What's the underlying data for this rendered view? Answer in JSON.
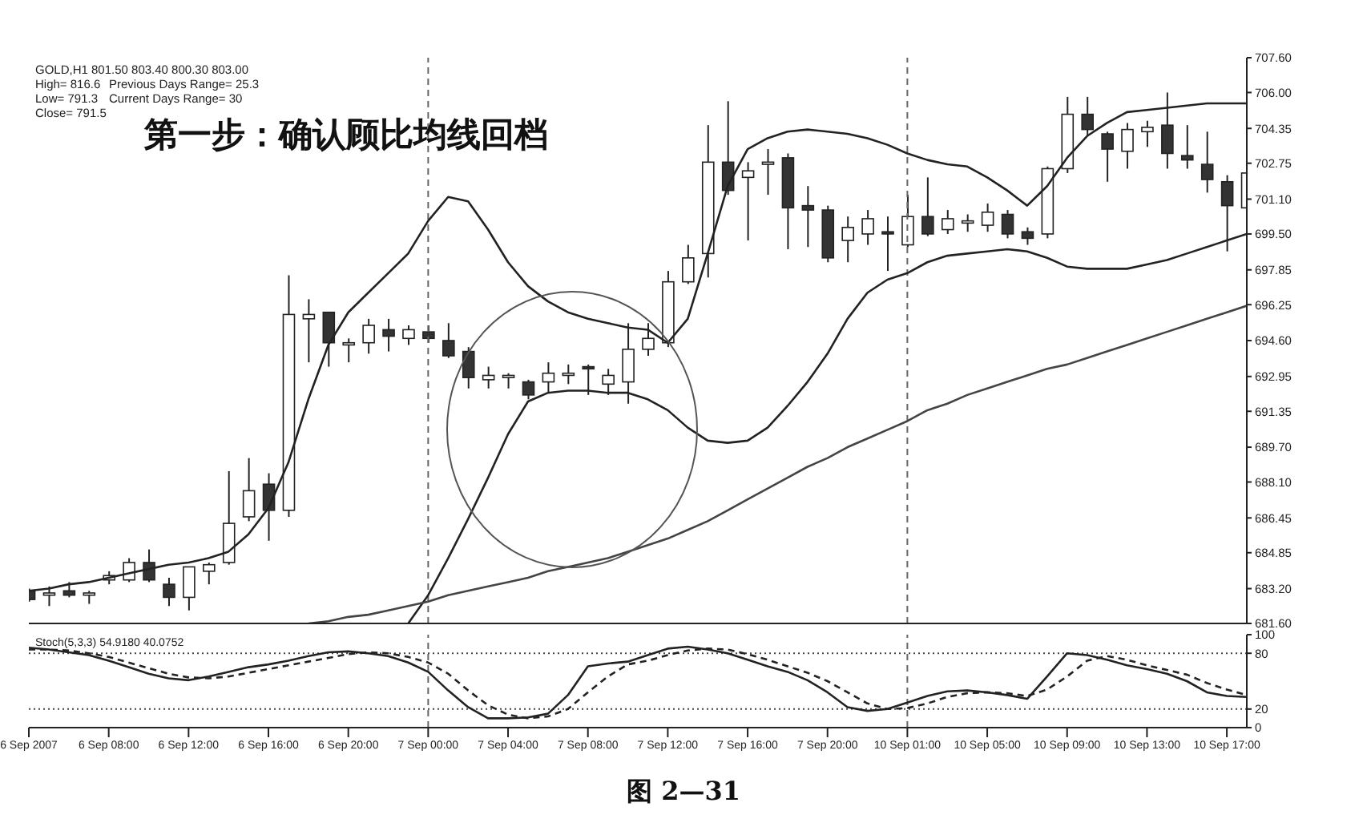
{
  "chart_data": [
    {
      "type": "candlestick",
      "title": "第一步：确认顾比均线回档",
      "annotations": [
        "GOLD,H1 801.50 803.40 800.30 803.00",
        "High= 816.6",
        "Previous Days Range= 25.3",
        "Low= 791.3",
        "Current Days Range= 30",
        "Close= 791.5"
      ],
      "categories": [
        "6 Sep 2007",
        null,
        null,
        null,
        "6 Sep 08:00",
        null,
        null,
        null,
        "6 Sep 12:00",
        null,
        null,
        null,
        "6 Sep 16:00",
        null,
        null,
        null,
        "6 Sep 20:00",
        null,
        null,
        null,
        "7 Sep 00:00",
        null,
        null,
        null,
        "7 Sep 04:00",
        null,
        null,
        null,
        "7 Sep 08:00",
        null,
        null,
        null,
        "7 Sep 12:00",
        null,
        null,
        null,
        "7 Sep 16:00",
        null,
        null,
        null,
        "7 Sep 20:00",
        null,
        null,
        null,
        "10 Sep 01:00",
        null,
        null,
        null,
        "10 Sep 05:00",
        null,
        null,
        null,
        "10 Sep 09:00",
        null,
        null,
        null,
        "10 Sep 13:00",
        null,
        null,
        null,
        "10 Sep 17:00",
        null
      ],
      "ohlc": [
        [
          683.1,
          683.2,
          682.6,
          682.7
        ],
        [
          682.9,
          683.3,
          682.4,
          683.0
        ],
        [
          683.1,
          683.5,
          682.8,
          682.9
        ],
        [
          682.9,
          683.1,
          682.5,
          683.0
        ],
        [
          683.6,
          684.0,
          683.4,
          683.8
        ],
        [
          683.6,
          684.6,
          683.5,
          684.4
        ],
        [
          684.4,
          685.0,
          683.5,
          683.6
        ],
        [
          683.4,
          683.7,
          682.4,
          682.8
        ],
        [
          682.8,
          684.2,
          682.2,
          684.2
        ],
        [
          684.0,
          684.4,
          683.4,
          684.3
        ],
        [
          684.4,
          688.6,
          684.3,
          686.2
        ],
        [
          686.5,
          689.2,
          686.3,
          687.7
        ],
        [
          688.0,
          688.5,
          685.4,
          686.8
        ],
        [
          686.8,
          697.6,
          686.5,
          695.8
        ],
        [
          695.6,
          696.5,
          693.6,
          695.8
        ],
        [
          695.9,
          695.9,
          693.4,
          694.5
        ],
        [
          694.4,
          694.7,
          693.6,
          694.5
        ],
        [
          694.5,
          695.6,
          694.0,
          695.3
        ],
        [
          695.1,
          695.6,
          694.1,
          694.8
        ],
        [
          694.7,
          695.3,
          694.4,
          695.1
        ],
        [
          695.0,
          695.3,
          694.5,
          694.7
        ],
        [
          694.6,
          695.4,
          693.8,
          693.9
        ],
        [
          694.1,
          694.3,
          692.4,
          692.9
        ],
        [
          692.8,
          693.4,
          692.4,
          693.0
        ],
        [
          692.9,
          693.1,
          692.4,
          693.0
        ],
        [
          692.7,
          692.8,
          691.9,
          692.1
        ],
        [
          692.7,
          693.6,
          692.2,
          693.1
        ],
        [
          693.0,
          693.5,
          692.6,
          693.1
        ],
        [
          693.4,
          693.5,
          692.1,
          693.3
        ],
        [
          692.6,
          693.3,
          692.1,
          693.0
        ],
        [
          692.7,
          695.4,
          691.7,
          694.2
        ],
        [
          694.2,
          695.4,
          693.9,
          694.7
        ],
        [
          694.5,
          697.8,
          694.3,
          697.3
        ],
        [
          697.3,
          699.0,
          697.2,
          698.4
        ],
        [
          698.6,
          704.5,
          697.5,
          702.8
        ],
        [
          702.8,
          705.6,
          701.3,
          701.5
        ],
        [
          702.1,
          702.8,
          699.2,
          702.4
        ],
        [
          702.7,
          703.4,
          701.3,
          702.8
        ],
        [
          703.0,
          703.2,
          698.8,
          700.7
        ],
        [
          700.8,
          701.7,
          698.9,
          700.6
        ],
        [
          700.6,
          700.8,
          698.2,
          698.4
        ],
        [
          699.2,
          700.3,
          698.2,
          699.8
        ],
        [
          699.5,
          700.6,
          699.0,
          700.2
        ],
        [
          699.6,
          700.3,
          697.8,
          699.5
        ],
        [
          699.0,
          701.3,
          698.9,
          700.3
        ],
        [
          700.3,
          702.1,
          699.4,
          699.5
        ],
        [
          699.7,
          700.6,
          699.5,
          700.2
        ],
        [
          700.0,
          700.4,
          699.6,
          700.1
        ],
        [
          699.9,
          700.9,
          699.6,
          700.5
        ],
        [
          700.4,
          700.6,
          699.3,
          699.5
        ],
        [
          699.6,
          699.8,
          699.0,
          699.3
        ],
        [
          699.5,
          702.6,
          699.3,
          702.5
        ],
        [
          702.5,
          705.8,
          702.3,
          705.0
        ],
        [
          705.0,
          705.8,
          704.0,
          704.3
        ],
        [
          704.1,
          704.2,
          701.9,
          703.4
        ],
        [
          703.3,
          704.6,
          702.5,
          704.3
        ],
        [
          704.2,
          704.7,
          703.5,
          704.4
        ],
        [
          704.5,
          706.0,
          702.5,
          703.2
        ],
        [
          703.1,
          704.5,
          702.5,
          702.9
        ],
        [
          702.7,
          704.2,
          701.4,
          702.0
        ],
        [
          701.9,
          702.2,
          698.7,
          700.8
        ],
        [
          700.7,
          702.7,
          700.5,
          702.3
        ]
      ],
      "series": [
        {
          "type": "line",
          "color": "#222222",
          "values": [
            683.1,
            683.2,
            683.4,
            683.5,
            683.7,
            683.9,
            684.1,
            684.3,
            684.4,
            684.6,
            684.9,
            685.7,
            686.9,
            689.0,
            691.9,
            694.4,
            695.9,
            696.8,
            697.7,
            698.6,
            700.1,
            701.2,
            701.0,
            699.7,
            698.2,
            697.1,
            696.4,
            695.9,
            695.6,
            695.4,
            695.2,
            695.1,
            694.5,
            695.6,
            698.6,
            701.7,
            703.4,
            703.9,
            704.2,
            704.3,
            704.2,
            704.1,
            703.9,
            703.6,
            703.2,
            702.9,
            702.7,
            702.6,
            702.1,
            701.5,
            700.8,
            701.7,
            703.0,
            704.0,
            704.6,
            705.1,
            705.2,
            705.3,
            705.4,
            705.5,
            705.5,
            705.5
          ]
        },
        {
          "type": "line",
          "color": "#222222",
          "values": [
            null,
            null,
            null,
            null,
            null,
            null,
            null,
            null,
            null,
            null,
            null,
            null,
            null,
            null,
            null,
            null,
            null,
            null,
            null,
            681.6,
            682.9,
            684.6,
            686.4,
            688.3,
            690.3,
            691.8,
            692.2,
            692.3,
            692.3,
            692.2,
            692.2,
            691.9,
            691.4,
            690.6,
            690.0,
            689.9,
            690.0,
            690.6,
            691.6,
            692.7,
            694.0,
            695.6,
            696.8,
            697.4,
            697.7,
            698.2,
            698.5,
            698.6,
            698.7,
            698.8,
            698.7,
            698.4,
            698.0,
            697.9,
            697.9,
            697.9,
            698.1,
            698.3,
            698.6,
            698.9,
            699.2,
            699.5
          ]
        },
        {
          "type": "line",
          "color": "#444444",
          "values": [
            null,
            null,
            null,
            null,
            null,
            null,
            null,
            null,
            null,
            null,
            null,
            null,
            null,
            null,
            681.6,
            681.7,
            681.9,
            682.0,
            682.2,
            682.4,
            682.6,
            682.9,
            683.1,
            683.3,
            683.5,
            683.7,
            684.0,
            684.2,
            684.4,
            684.6,
            684.9,
            685.2,
            685.5,
            685.9,
            686.3,
            686.8,
            687.3,
            687.8,
            688.3,
            688.8,
            689.2,
            689.7,
            690.1,
            690.5,
            690.9,
            691.4,
            691.7,
            692.1,
            692.4,
            692.7,
            693.0,
            693.3,
            693.5,
            693.8,
            694.1,
            694.4,
            694.7,
            695.0,
            695.3,
            695.6,
            695.9,
            696.2
          ]
        }
      ],
      "ylim": [
        681.6,
        707.6
      ],
      "yticks": [
        {
          "value": 681.6,
          "label": "681.60"
        },
        {
          "value": 683.2,
          "label": "683.20"
        },
        {
          "value": 684.85,
          "label": "684.85"
        },
        {
          "value": 686.45,
          "label": "686.45"
        },
        {
          "value": 688.1,
          "label": "688.10"
        },
        {
          "value": 689.7,
          "label": "689.70"
        },
        {
          "value": 691.35,
          "label": "691.35"
        },
        {
          "value": 692.95,
          "label": "692.95"
        },
        {
          "value": 694.6,
          "label": "694.60"
        },
        {
          "value": 696.25,
          "label": "696.25"
        },
        {
          "value": 697.85,
          "label": "697.85"
        },
        {
          "value": 699.5,
          "label": "699.50"
        },
        {
          "value": 701.1,
          "label": "701.10"
        },
        {
          "value": 702.75,
          "label": "702.75"
        },
        {
          "value": 704.35,
          "label": "704.35"
        },
        {
          "value": 706.0,
          "label": "706.00"
        },
        {
          "value": 707.6,
          "label": "707.60"
        }
      ],
      "ref_lines": [
        {
          "axis": "x",
          "value": "7 Sep 00:00",
          "line_style": "dashed",
          "color": "#666666"
        },
        {
          "axis": "x",
          "value": "10 Sep 01:00",
          "line_style": "dashed",
          "color": "#666666"
        }
      ],
      "marker": "none",
      "tick_labels": "y"
    },
    {
      "type": "line",
      "annotations": [
        "Stoch(5,3,3) 54.9180 40.0752",
        "图 2—31"
      ],
      "categories": [
        "6 Sep 2007",
        null,
        null,
        null,
        "6 Sep 08:00",
        null,
        null,
        null,
        "6 Sep 12:00",
        null,
        null,
        null,
        "6 Sep 16:00",
        null,
        null,
        null,
        "6 Sep 20:00",
        null,
        null,
        null,
        "7 Sep 00:00",
        null,
        null,
        null,
        "7 Sep 04:00",
        null,
        null,
        null,
        "7 Sep 08:00",
        null,
        null,
        null,
        "7 Sep 12:00",
        null,
        null,
        null,
        "7 Sep 16:00",
        null,
        null,
        null,
        "7 Sep 20:00",
        null,
        null,
        null,
        "10 Sep 01:00",
        null,
        null,
        null,
        "10 Sep 05:00",
        null,
        null,
        null,
        "10 Sep 09:00",
        null,
        null,
        null,
        "10 Sep 13:00",
        null,
        null,
        null,
        "10 Sep 17:00",
        null
      ],
      "series": [
        {
          "color": "#222222",
          "line_style": "solid",
          "values": [
            86,
            84,
            81,
            78,
            72,
            65,
            58,
            53,
            51,
            55,
            60,
            65,
            68,
            72,
            77,
            81,
            82,
            80,
            77,
            70,
            60,
            40,
            22,
            10,
            10,
            11,
            15,
            35,
            66,
            69,
            71,
            78,
            85,
            87,
            84,
            80,
            73,
            66,
            60,
            51,
            38,
            22,
            18,
            20,
            27,
            34,
            39,
            40,
            38,
            35,
            31,
            55,
            80,
            78,
            73,
            67,
            63,
            58,
            50,
            38,
            34,
            33
          ]
        },
        {
          "color": "#222222",
          "line_style": "dashed",
          "values": [
            84,
            84,
            83,
            80,
            76,
            70,
            64,
            58,
            54,
            53,
            55,
            59,
            63,
            67,
            71,
            75,
            79,
            81,
            80,
            76,
            70,
            58,
            40,
            24,
            14,
            10,
            12,
            20,
            38,
            55,
            68,
            72,
            78,
            83,
            85,
            84,
            79,
            73,
            66,
            59,
            50,
            38,
            26,
            20,
            21,
            26,
            33,
            37,
            38,
            37,
            34,
            41,
            55,
            72,
            77,
            73,
            67,
            62,
            57,
            48,
            41,
            35
          ]
        }
      ],
      "ylim": [
        0,
        100
      ],
      "yticks": [
        0,
        20,
        80,
        100
      ],
      "ref_lines": [
        {
          "axis": "y",
          "value": 20,
          "line_style": "dotted",
          "color": "#444444"
        },
        {
          "axis": "y",
          "value": 80,
          "line_style": "dotted",
          "color": "#444444"
        },
        {
          "axis": "x",
          "value": "7 Sep 00:00",
          "line_style": "dashed",
          "color": "#666666"
        },
        {
          "axis": "x",
          "value": "10 Sep 01:00",
          "line_style": "dashed",
          "color": "#666666"
        }
      ],
      "marker": "none"
    }
  ]
}
